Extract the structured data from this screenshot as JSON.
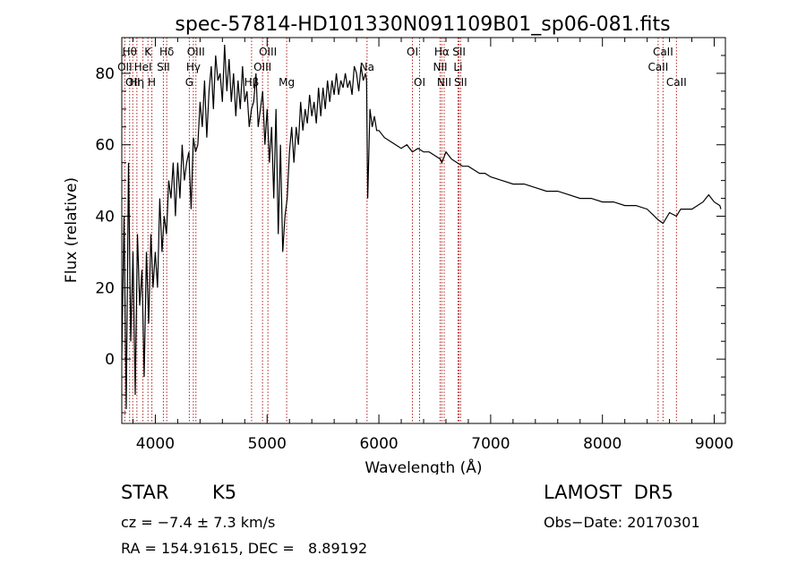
{
  "chart_data": {
    "type": "line",
    "title": "spec-57814-HD101330N091109B01_sp06-081.fits",
    "xlabel": "Wavelength (Å)",
    "ylabel": "Flux (relative)",
    "xlim": [
      3700,
      9100
    ],
    "ylim": [
      -18,
      90
    ],
    "x_ticks": [
      4000,
      5000,
      6000,
      7000,
      8000,
      9000
    ],
    "y_ticks": [
      0,
      20,
      40,
      60,
      80
    ],
    "grid": false,
    "series": [
      {
        "x": [
          3700,
          3720,
          3740,
          3760,
          3780,
          3800,
          3820,
          3840,
          3860,
          3880,
          3900,
          3920,
          3940,
          3960,
          3980,
          4000,
          4020,
          4040,
          4060,
          4080,
          4100,
          4120,
          4140,
          4160,
          4180,
          4200,
          4220,
          4240,
          4260,
          4280,
          4300,
          4320,
          4340,
          4360,
          4380,
          4400,
          4420,
          4440,
          4460,
          4480,
          4500,
          4520,
          4540,
          4560,
          4580,
          4600,
          4620,
          4640,
          4660,
          4680,
          4700,
          4720,
          4740,
          4760,
          4780,
          4800,
          4820,
          4840,
          4860,
          4880,
          4900,
          4920,
          4940,
          4960,
          4980,
          5000,
          5020,
          5040,
          5060,
          5080,
          5100,
          5120,
          5140,
          5160,
          5180,
          5200,
          5220,
          5240,
          5260,
          5280,
          5300,
          5320,
          5340,
          5360,
          5380,
          5400,
          5420,
          5440,
          5460,
          5480,
          5500,
          5520,
          5540,
          5560,
          5580,
          5600,
          5620,
          5640,
          5660,
          5680,
          5700,
          5720,
          5740,
          5760,
          5780,
          5800,
          5820,
          5840,
          5860,
          5880,
          5890,
          5900,
          5920,
          5940,
          5960,
          5980,
          6000,
          6050,
          6100,
          6150,
          6200,
          6250,
          6300,
          6350,
          6400,
          6450,
          6500,
          6550,
          6563,
          6600,
          6650,
          6700,
          6750,
          6800,
          6850,
          6900,
          6950,
          7000,
          7100,
          7200,
          7300,
          7400,
          7500,
          7600,
          7700,
          7800,
          7900,
          8000,
          8100,
          8200,
          8300,
          8400,
          8498,
          8542,
          8600,
          8662,
          8700,
          8800,
          8900,
          8950,
          9000,
          9050,
          9060
        ],
        "y": [
          0,
          40,
          -14,
          55,
          5,
          30,
          -10,
          35,
          15,
          25,
          -5,
          30,
          10,
          35,
          20,
          30,
          20,
          45,
          30,
          40,
          35,
          50,
          45,
          55,
          40,
          55,
          45,
          60,
          50,
          55,
          58,
          42,
          62,
          58,
          60,
          72,
          65,
          78,
          62,
          75,
          82,
          70,
          85,
          78,
          80,
          72,
          88,
          75,
          84,
          72,
          80,
          68,
          78,
          70,
          82,
          72,
          75,
          65,
          70,
          72,
          80,
          65,
          70,
          75,
          60,
          70,
          55,
          65,
          45,
          70,
          35,
          60,
          30,
          40,
          45,
          58,
          65,
          55,
          65,
          60,
          72,
          64,
          70,
          66,
          74,
          68,
          72,
          66,
          76,
          68,
          76,
          70,
          78,
          72,
          78,
          74,
          80,
          74,
          78,
          76,
          80,
          76,
          78,
          74,
          82,
          80,
          75,
          82,
          78,
          80,
          78,
          45,
          70,
          65,
          68,
          64,
          64,
          62,
          61,
          60,
          59,
          60,
          58,
          59,
          58,
          58,
          57,
          56,
          55,
          58,
          56,
          55,
          54,
          54,
          53,
          52,
          52,
          51,
          50,
          49,
          49,
          48,
          47,
          47,
          46,
          45,
          45,
          44,
          44,
          43,
          43,
          42,
          39,
          38,
          41,
          40,
          42,
          42,
          44,
          46,
          44,
          43,
          42
        ]
      }
    ],
    "line_markers": [
      {
        "wl": 3727,
        "label": "OII",
        "row": 2
      },
      {
        "wl": 3770,
        "label": "Hθ",
        "row": 1
      },
      {
        "wl": 3798,
        "label": "OII",
        "row": 3
      },
      {
        "wl": 3835,
        "label": "Hη",
        "row": 3
      },
      {
        "wl": 3889,
        "label": "HeI",
        "row": 2
      },
      {
        "wl": 3934,
        "label": "K",
        "row": 1
      },
      {
        "wl": 3969,
        "label": "H",
        "row": 3
      },
      {
        "wl": 4072,
        "label": "SII",
        "row": 2
      },
      {
        "wl": 4102,
        "label": "Hδ",
        "row": 1
      },
      {
        "wl": 4304,
        "label": "G",
        "row": 3
      },
      {
        "wl": 4340,
        "label": "Hγ",
        "row": 2
      },
      {
        "wl": 4363,
        "label": "OIII",
        "row": 1
      },
      {
        "wl": 4861,
        "label": "Hβ",
        "row": 3
      },
      {
        "wl": 4959,
        "label": "OIII",
        "row": 2
      },
      {
        "wl": 5007,
        "label": "OIII",
        "row": 1
      },
      {
        "wl": 5175,
        "label": "Mg",
        "row": 3
      },
      {
        "wl": 5894,
        "label": "Na",
        "row": 2
      },
      {
        "wl": 6300,
        "label": "OI",
        "row": 1
      },
      {
        "wl": 6364,
        "label": "OI",
        "row": 3
      },
      {
        "wl": 6548,
        "label": "NII",
        "row": 2
      },
      {
        "wl": 6563,
        "label": "Hα",
        "row": 1
      },
      {
        "wl": 6584,
        "label": "NII",
        "row": 3
      },
      {
        "wl": 6708,
        "label": "Li",
        "row": 2
      },
      {
        "wl": 6717,
        "label": "SII",
        "row": 1
      },
      {
        "wl": 6731,
        "label": "SII",
        "row": 3
      },
      {
        "wl": 8498,
        "label": "CaII",
        "row": 2
      },
      {
        "wl": 8542,
        "label": "CaII",
        "row": 1
      },
      {
        "wl": 8662,
        "label": "CaII",
        "row": 3
      }
    ]
  },
  "info": {
    "class": "STAR",
    "subclass": "K5",
    "survey": "LAMOST  DR5",
    "cz": "cz = −7.4 ± 7.3 km/s",
    "obs_date": "Obs−Date: 20170301",
    "coords": "RA = 154.91615, DEC =   8.89192"
  },
  "colors": {
    "marker": "#b22222",
    "spectrum": "#000000"
  }
}
